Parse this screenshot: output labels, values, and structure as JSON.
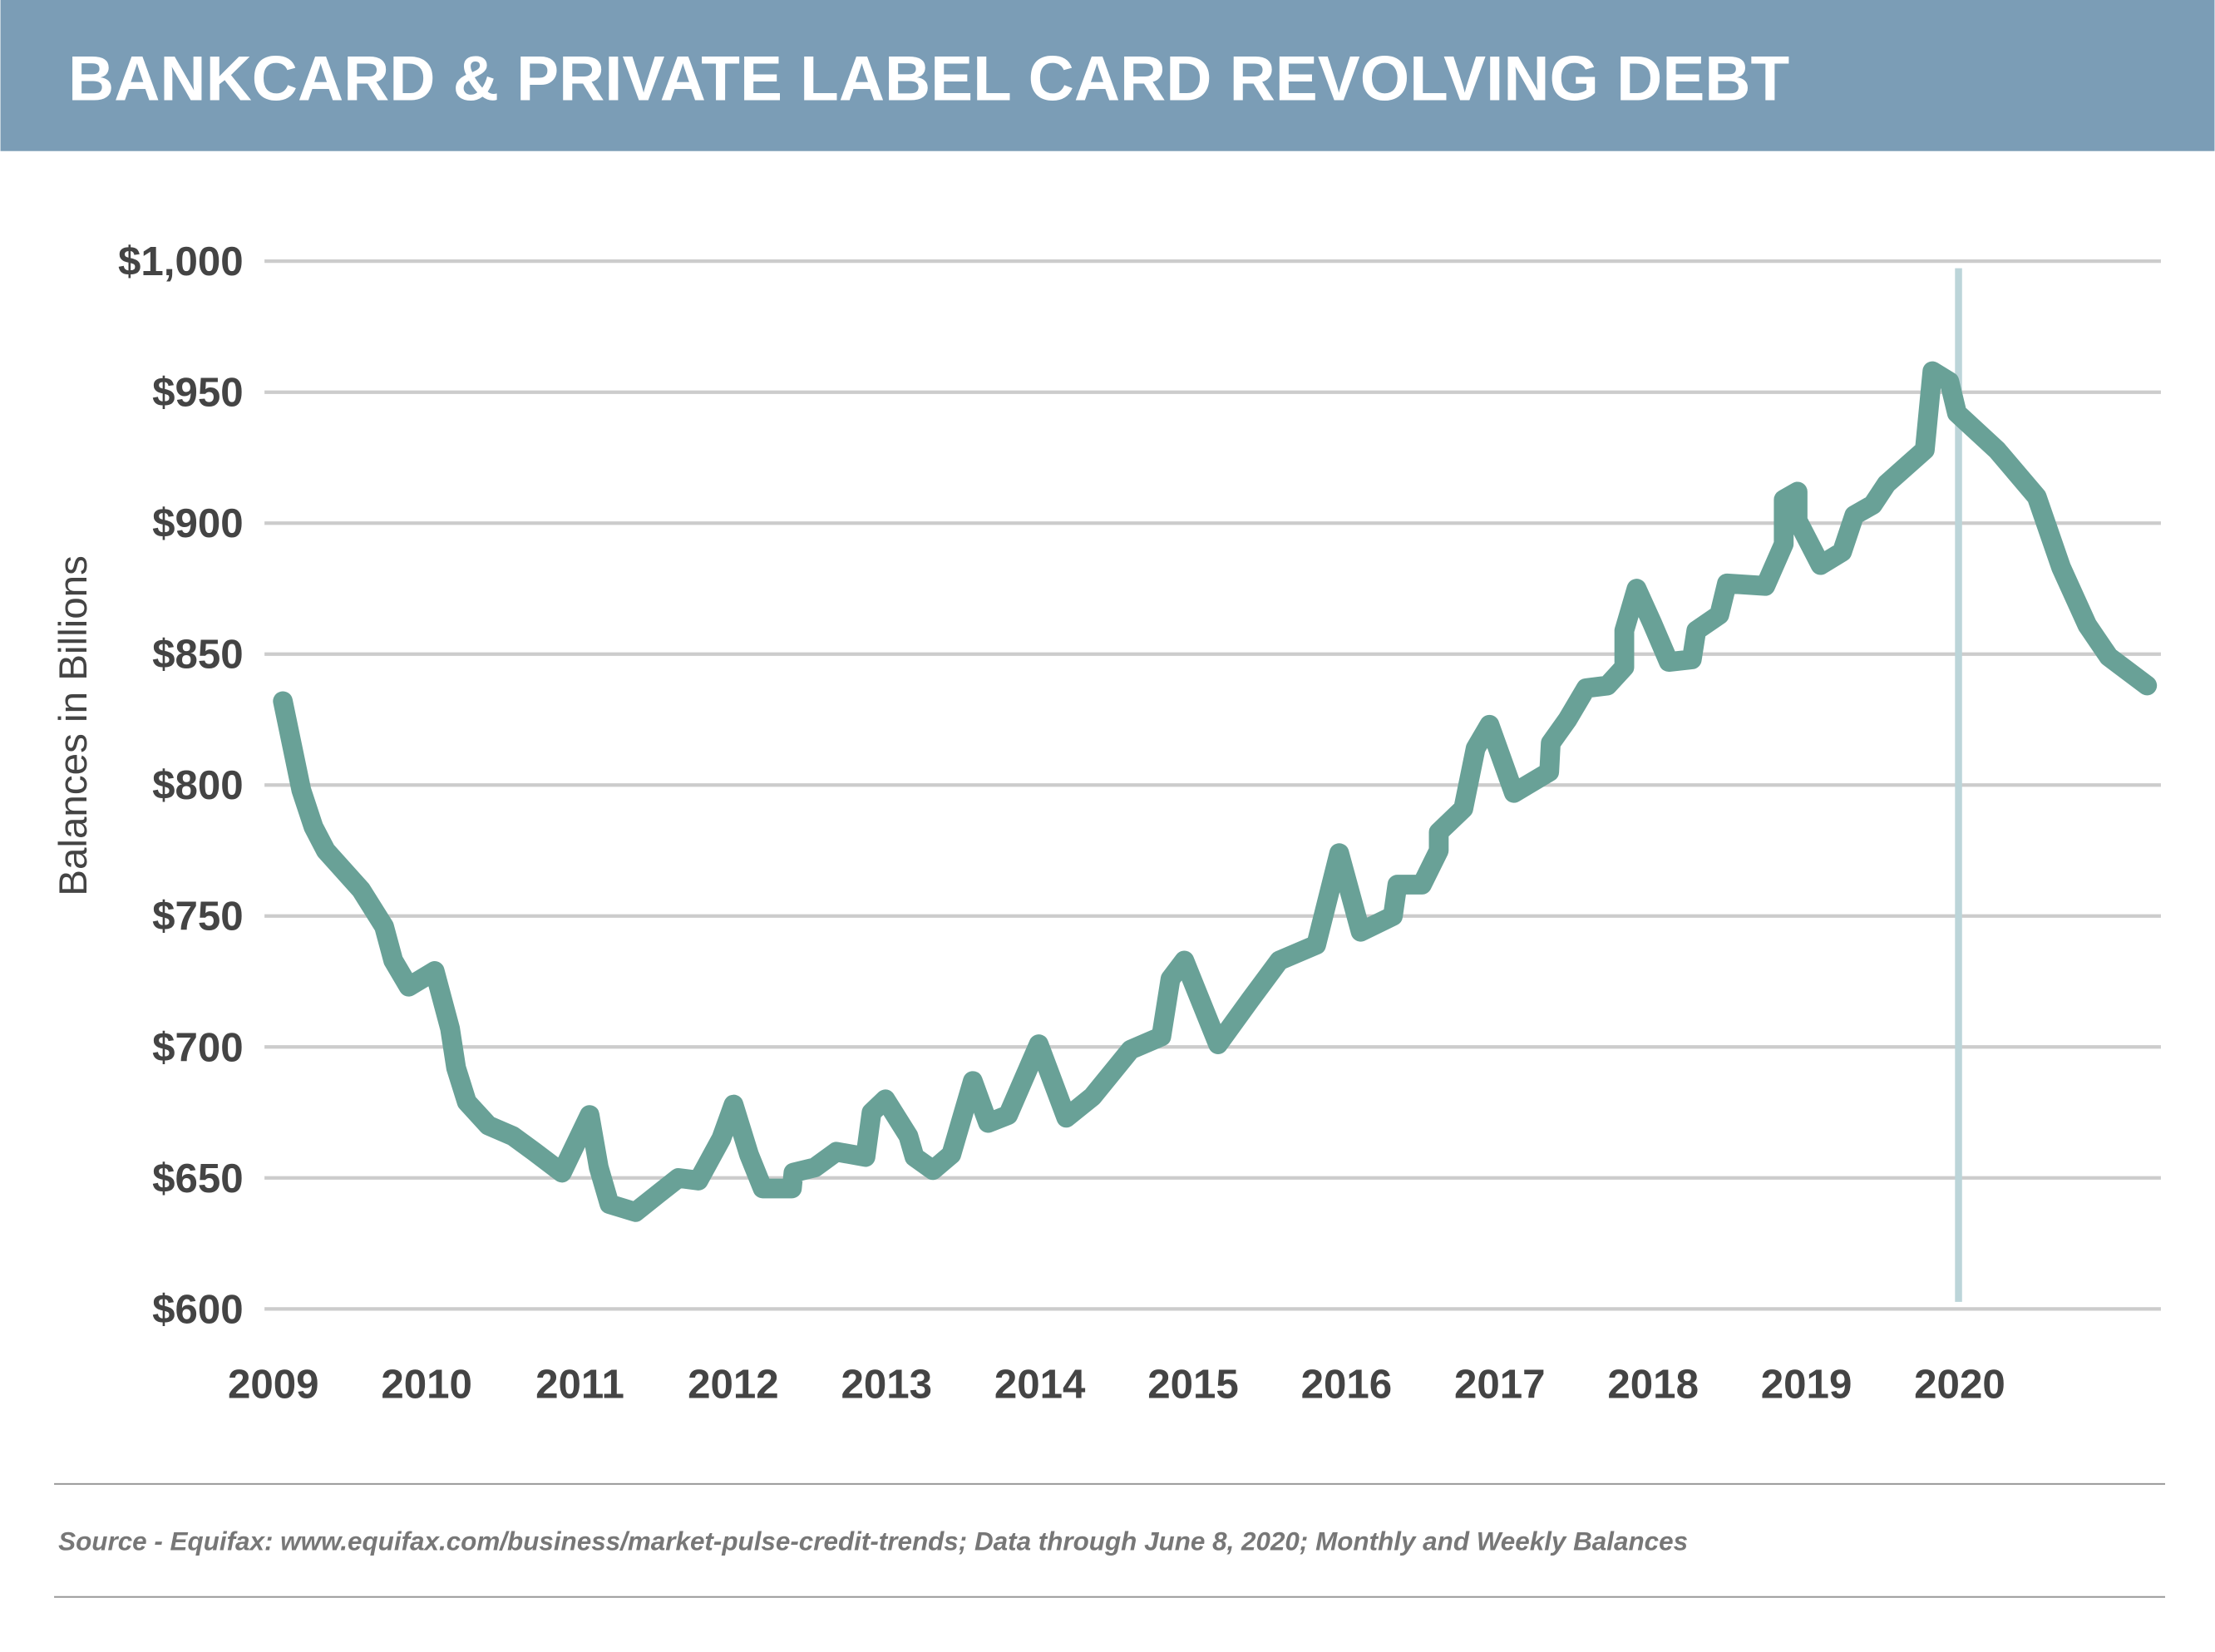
{
  "header": {
    "title": "BANKCARD & PRIVATE LABEL CARD REVOLVING DEBT",
    "background_color": "#7b9db6"
  },
  "chart_data": {
    "type": "line",
    "title": "BANKCARD & PRIVATE LABEL CARD REVOLVING DEBT",
    "xlabel": "",
    "ylabel": "Balances in Billions",
    "xlim": [
      2008.97,
      2021.34
    ],
    "ylim": [
      600,
      1000
    ],
    "x_ticks": [
      2009,
      2010,
      2011,
      2012,
      2013,
      2014,
      2015,
      2016,
      2017,
      2018,
      2019,
      2020
    ],
    "x_tick_labels": [
      "2009",
      "2010",
      "2011",
      "2012",
      "2013",
      "2014",
      "2015",
      "2016",
      "2017",
      "2018",
      "2019",
      "2020"
    ],
    "y_ticks": [
      600,
      650,
      700,
      750,
      800,
      850,
      900,
      950,
      1000
    ],
    "y_tick_labels": [
      "$600",
      "$650",
      "$700",
      "$750",
      "$800",
      "$850",
      "$900",
      "$950",
      "$1,000"
    ],
    "grid": "horizontal",
    "line_color": "#69a197",
    "marker_line": {
      "x": 2020.02,
      "color": "#bcd5d9"
    },
    "series": [
      {
        "x": [
          2009.09,
          2009.21,
          2009.29,
          2009.37,
          2009.6,
          2009.75,
          2009.81,
          2009.91,
          2010.08,
          2010.18,
          2010.22,
          2010.29,
          2010.43,
          2010.59,
          2010.73,
          2010.91,
          2011.09,
          2011.15,
          2011.22,
          2011.39,
          2011.54,
          2011.67,
          2011.8,
          2011.95,
          2012.03,
          2012.13,
          2012.22,
          2012.41,
          2012.42,
          2012.56,
          2012.7,
          2012.89,
          2012.93,
          2013.02,
          2013.17,
          2013.21,
          2013.33,
          2013.45,
          2013.59,
          2013.69,
          2013.82,
          2014.02,
          2014.2,
          2014.37,
          2014.62,
          2014.82,
          2014.88,
          2014.97,
          2015.19,
          2015.4,
          2015.59,
          2015.83,
          2015.98,
          2016.12,
          2016.33,
          2016.36,
          2016.52,
          2016.63,
          2016.63,
          2016.79,
          2016.87,
          2016.96,
          2017.12,
          2017.35,
          2017.36,
          2017.47,
          2017.59,
          2017.73,
          2017.84,
          2017.84,
          2017.92,
          2018.02,
          2018.13,
          2018.28,
          2018.31,
          2018.46,
          2018.51,
          2018.76,
          2018.88,
          2018.88,
          2018.97,
          2018.97,
          2019.12,
          2019.26,
          2019.34,
          2019.46,
          2019.55,
          2019.8,
          2019.85,
          2019.96,
          2020.01,
          2020.27,
          2020.53,
          2020.69,
          2020.86,
          2021.0,
          2021.25
        ],
        "values": [
          832,
          798,
          784,
          775,
          760,
          746,
          733,
          723,
          729,
          707,
          692,
          679,
          670,
          666,
          660,
          652,
          674,
          654,
          640,
          637,
          644,
          650,
          649,
          665,
          678,
          659,
          646,
          646,
          652,
          654,
          660,
          658,
          675,
          680,
          666,
          658,
          653,
          659,
          687,
          671,
          674,
          701,
          673,
          681,
          699,
          704,
          726,
          733,
          701,
          718,
          733,
          739,
          774,
          744,
          750,
          762,
          762,
          775,
          782,
          791,
          814,
          823,
          797,
          805,
          816,
          825,
          837,
          838,
          845,
          859,
          875,
          862,
          847,
          848,
          859,
          865,
          877,
          876,
          892,
          909,
          912,
          901,
          884,
          889,
          903,
          907,
          915,
          928,
          958,
          954,
          942,
          928,
          910,
          883,
          861,
          849,
          838
        ]
      }
    ]
  },
  "footer": {
    "source": "Source - Equifax: www.equifax.com/business/market-pulse-credit-trends; Data through June 8, 2020; Monthly and Weekly Balances"
  }
}
